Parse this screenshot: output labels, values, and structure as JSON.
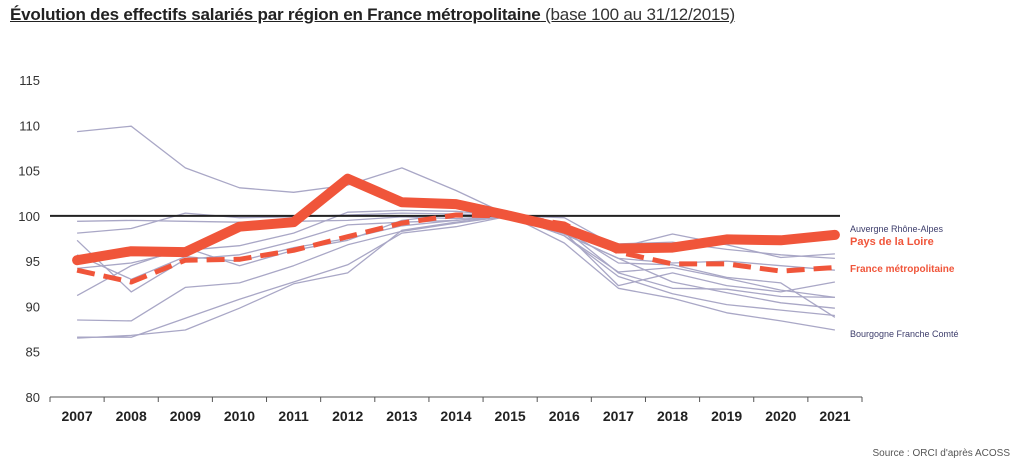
{
  "title_bold": "Évolution des effectifs salariés par région en France métropolitaine",
  "title_normal": "(base 100 au 31/12/2015)",
  "source": "Source : ORCI d'après ACOSS",
  "chart_data": {
    "type": "line",
    "title": "Évolution des effectifs salariés par région en France métropolitaine (base 100 au 31/12/2015)",
    "xlabel": "",
    "ylabel": "",
    "x": [
      "2007",
      "2008",
      "2009",
      "2010",
      "2011",
      "2012",
      "2013",
      "2014",
      "2015",
      "2016",
      "2017",
      "2018",
      "2019",
      "2020",
      "2021"
    ],
    "ylim": [
      80,
      115
    ],
    "yticks": [
      80,
      85,
      90,
      95,
      100,
      105,
      110,
      115
    ],
    "reference_line": 100,
    "grid": false,
    "colors": {
      "highlight": "#f0553a",
      "regions": "#a9a7c6",
      "reference": "#222222"
    },
    "series": [
      {
        "name": "Auvergne Rhône-Alpes",
        "style": "region",
        "values": [
          null,
          null,
          null,
          null,
          null,
          null,
          null,
          null,
          100,
          null,
          null,
          null,
          null,
          null,
          95.8
        ]
      },
      {
        "name": "Bourgogne Franche Comté",
        "style": "region",
        "values": [
          null,
          null,
          null,
          null,
          null,
          null,
          null,
          null,
          100,
          null,
          null,
          null,
          null,
          null,
          87.4
        ]
      },
      {
        "name": "",
        "style": "region",
        "values": [
          109.3,
          109.9,
          105.3,
          103.1,
          102.6,
          103.4,
          105.3,
          102.8,
          100,
          98.5,
          94.8,
          94.6,
          93.2,
          92.6,
          88.8
        ]
      },
      {
        "name": "",
        "style": "region",
        "values": [
          98.1,
          98.6,
          100.3,
          99.8,
          99.9,
          100.1,
          100.3,
          100.2,
          100,
          99.8,
          96.5,
          98.0,
          96.8,
          95.4,
          95.8
        ]
      },
      {
        "name": "",
        "style": "region",
        "values": [
          99.4,
          99.5,
          99.4,
          99.3,
          99.4,
          99.5,
          99.9,
          99.7,
          100,
          99.0,
          96.9,
          97.1,
          96.3,
          95.7,
          95.3
        ]
      },
      {
        "name": "",
        "style": "region",
        "values": [
          97.3,
          91.6,
          95.2,
          95.7,
          97.2,
          99.0,
          99.3,
          99.5,
          100,
          98.0,
          95.3,
          94.8,
          95.0,
          94.5,
          94.0
        ]
      },
      {
        "name": "",
        "style": "region",
        "values": [
          95.7,
          93.0,
          95.5,
          95.0,
          96.5,
          97.5,
          98.9,
          99.5,
          100,
          97.8,
          93.8,
          94.3,
          93.1,
          91.8,
          91.0
        ]
      },
      {
        "name": "",
        "style": "region",
        "values": [
          94.2,
          94.8,
          96.2,
          96.7,
          98.1,
          100.4,
          100.6,
          100.5,
          100,
          98.2,
          92.3,
          93.7,
          92.3,
          91.6,
          92.7
        ]
      },
      {
        "name": "",
        "style": "region",
        "values": [
          91.2,
          94.5,
          96.5,
          94.5,
          96.2,
          97.3,
          99.5,
          100.2,
          100,
          98.5,
          93.7,
          92.0,
          91.9,
          91.1,
          91.0
        ]
      },
      {
        "name": "",
        "style": "region",
        "values": [
          88.5,
          88.4,
          92.1,
          92.6,
          94.5,
          96.8,
          98.3,
          99.2,
          100,
          98.0,
          95.3,
          92.7,
          91.5,
          90.4,
          89.8
        ]
      },
      {
        "name": "",
        "style": "region",
        "values": [
          86.6,
          86.6,
          88.7,
          90.8,
          92.7,
          94.6,
          98.1,
          98.8,
          100,
          97.8,
          93.3,
          91.4,
          90.2,
          89.6,
          89.0
        ]
      },
      {
        "name": "",
        "style": "region",
        "values": [
          86.5,
          86.8,
          87.4,
          89.8,
          92.5,
          93.7,
          98.4,
          99.3,
          100,
          97.0,
          92.0,
          90.9,
          89.3,
          88.4,
          87.4
        ]
      },
      {
        "name": "France métropolitaine",
        "style": "dashed",
        "values": [
          94.0,
          92.7,
          95.1,
          95.2,
          96.2,
          97.7,
          99.2,
          100.1,
          100,
          99.1,
          96.0,
          94.7,
          94.7,
          93.9,
          94.3
        ]
      },
      {
        "name": "Pays de la Loire",
        "style": "thick",
        "values": [
          95.1,
          96.1,
          96.0,
          98.8,
          99.3,
          104.1,
          101.5,
          101.3,
          100,
          98.6,
          96.4,
          96.5,
          97.4,
          97.3,
          97.9
        ]
      }
    ]
  }
}
